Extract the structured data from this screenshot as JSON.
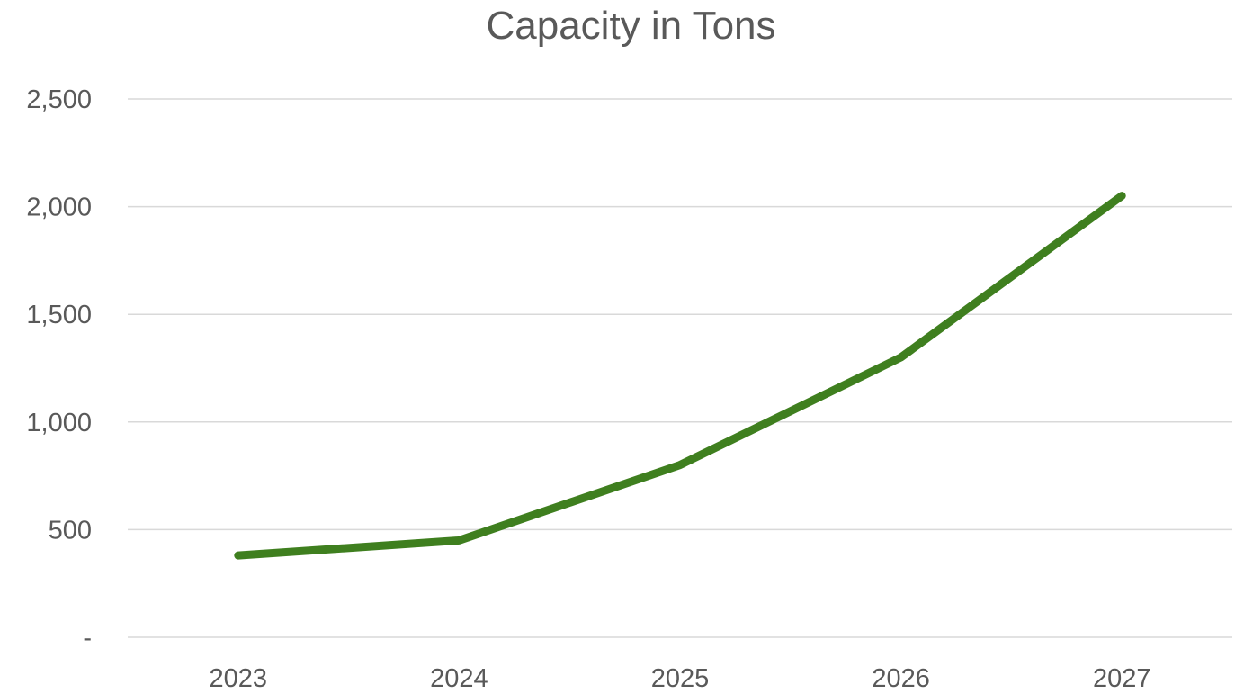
{
  "chart_data": {
    "type": "line",
    "title": "Capacity in Tons",
    "xlabel": "",
    "ylabel": "",
    "categories": [
      "2023",
      "2024",
      "2025",
      "2026",
      "2027"
    ],
    "series": [
      {
        "values": [
          380,
          450,
          800,
          1300,
          2050
        ],
        "color": "#3f7f1f"
      }
    ],
    "ylim": [
      0,
      2500
    ],
    "y_ticks": [
      0,
      500,
      1000,
      1500,
      2000,
      2500
    ],
    "y_tick_labels": [
      "-",
      "500",
      "1,000",
      "1,500",
      "2,000",
      "2,500"
    ],
    "grid": true,
    "gridline_color": "#d9d9d9",
    "legend": "none"
  }
}
